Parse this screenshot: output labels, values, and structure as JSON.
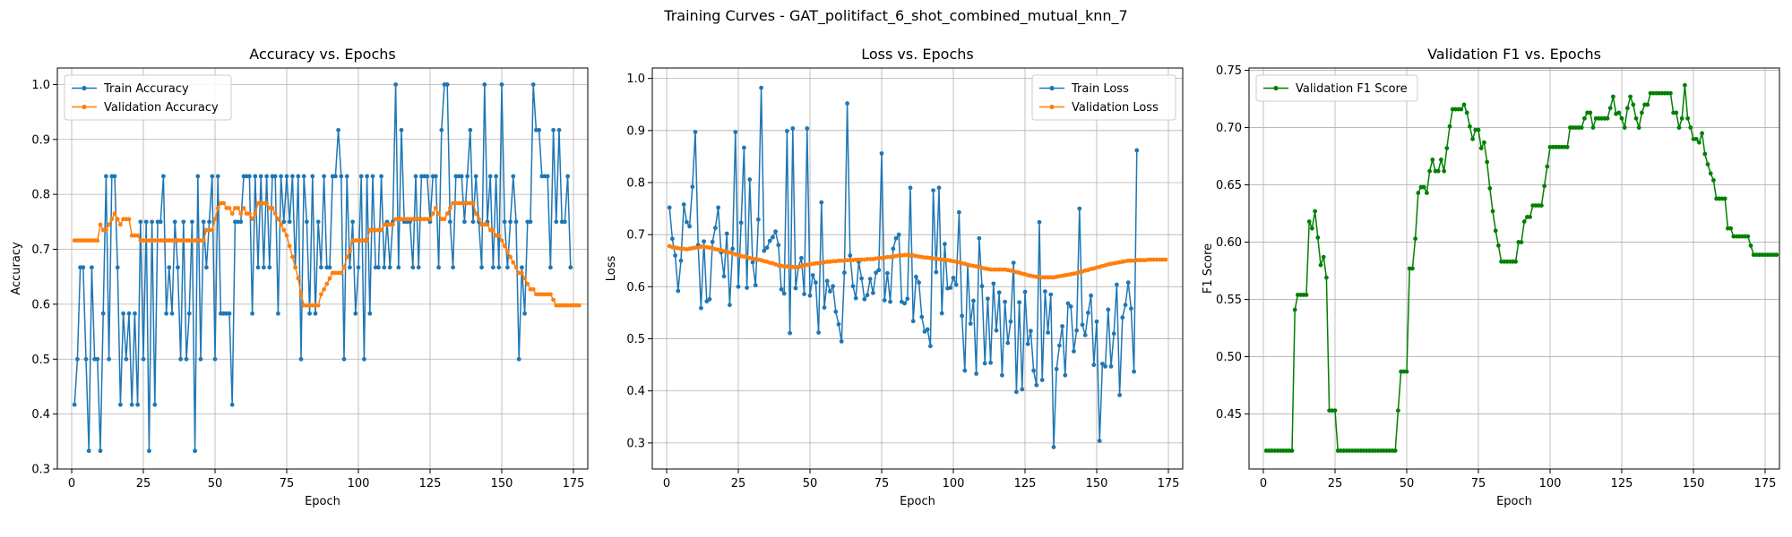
{
  "figure": {
    "suptitle": "Training Curves - GAT_politifact_6_shot_combined_mutual_knn_7"
  },
  "chart_data": [
    {
      "type": "line",
      "title": "Accuracy vs. Epochs",
      "xlabel": "Epoch",
      "ylabel": "Accuracy",
      "xlim": [
        -5,
        180
      ],
      "ylim": [
        0.3,
        1.03
      ],
      "xticks": [
        0,
        25,
        50,
        75,
        100,
        125,
        150,
        175
      ],
      "yticks": [
        0.3,
        0.4,
        0.5,
        0.6,
        0.7,
        0.8,
        0.9,
        1.0
      ],
      "ytick_labels": [
        "0.3",
        "0.4",
        "0.5",
        "0.6",
        "0.7",
        "0.8",
        "0.9",
        "1.0"
      ],
      "grid": true,
      "legend": "upper-left",
      "series": [
        {
          "name": "Train Accuracy",
          "color": "#1f77b4",
          "values": [
            0.417,
            0.5,
            0.667,
            0.667,
            0.5,
            0.333,
            0.667,
            0.5,
            0.5,
            0.333,
            0.583,
            0.833,
            0.5,
            0.833,
            0.833,
            0.667,
            0.417,
            0.583,
            0.5,
            0.583,
            0.417,
            0.583,
            0.417,
            0.75,
            0.5,
            0.75,
            0.333,
            0.75,
            0.417,
            0.75,
            0.75,
            0.833,
            0.583,
            0.667,
            0.583,
            0.75,
            0.667,
            0.5,
            0.75,
            0.5,
            0.583,
            0.75,
            0.333,
            0.833,
            0.5,
            0.75,
            0.667,
            0.75,
            0.833,
            0.5,
            0.833,
            0.583,
            0.583,
            0.583,
            0.583,
            0.417,
            0.75,
            0.75,
            0.75,
            0.833,
            0.833,
            0.833,
            0.583,
            0.833,
            0.667,
            0.833,
            0.667,
            0.833,
            0.667,
            0.833,
            0.833,
            0.583,
            0.833,
            0.75,
            0.833,
            0.75,
            0.833,
            0.667,
            0.833,
            0.5,
            0.833,
            0.75,
            0.583,
            0.833,
            0.583,
            0.75,
            0.667,
            0.833,
            0.667,
            0.667,
            0.833,
            0.833,
            0.917,
            0.833,
            0.5,
            0.833,
            0.667,
            0.75,
            0.583,
            0.667,
            0.833,
            0.5,
            0.833,
            0.583,
            0.833,
            0.667,
            0.667,
            0.833,
            0.667,
            0.75,
            0.667,
            0.75,
            1.0,
            0.667,
            0.917,
            0.75,
            0.75,
            0.75,
            0.667,
            0.833,
            0.667,
            0.833,
            0.833,
            0.833,
            0.75,
            0.833,
            0.833,
            0.667,
            0.917,
            1.0,
            1.0,
            0.75,
            0.667,
            0.833,
            0.833,
            0.833,
            0.75,
            0.833,
            0.917,
            0.75,
            0.833,
            0.75,
            0.667,
            1.0,
            0.75,
            0.833,
            0.667,
            0.833,
            0.667,
            1.0,
            0.75,
            0.667,
            0.75,
            0.833,
            0.75,
            0.5,
            0.667,
            0.583,
            0.75,
            0.75,
            1.0,
            0.917,
            0.917,
            0.833,
            0.833,
            0.833,
            0.667,
            0.917,
            0.75,
            0.917,
            0.75,
            0.75,
            0.833,
            0.667
          ]
        },
        {
          "name": "Validation Accuracy",
          "color": "#ff7f0e",
          "values": [
            0.716,
            0.716,
            0.716,
            0.716,
            0.716,
            0.716,
            0.716,
            0.716,
            0.716,
            0.745,
            0.735,
            0.735,
            0.745,
            0.755,
            0.765,
            0.755,
            0.745,
            0.755,
            0.755,
            0.755,
            0.725,
            0.725,
            0.725,
            0.716,
            0.716,
            0.716,
            0.716,
            0.716,
            0.716,
            0.716,
            0.716,
            0.716,
            0.716,
            0.716,
            0.716,
            0.716,
            0.716,
            0.716,
            0.716,
            0.716,
            0.716,
            0.716,
            0.716,
            0.716,
            0.716,
            0.716,
            0.735,
            0.735,
            0.735,
            0.755,
            0.775,
            0.784,
            0.784,
            0.775,
            0.775,
            0.765,
            0.775,
            0.775,
            0.765,
            0.775,
            0.765,
            0.765,
            0.755,
            0.765,
            0.784,
            0.784,
            0.784,
            0.784,
            0.775,
            0.775,
            0.765,
            0.755,
            0.745,
            0.735,
            0.725,
            0.706,
            0.686,
            0.667,
            0.647,
            0.618,
            0.598,
            0.598,
            0.598,
            0.598,
            0.598,
            0.598,
            0.618,
            0.627,
            0.637,
            0.647,
            0.657,
            0.657,
            0.657,
            0.657,
            0.667,
            0.686,
            0.696,
            0.716,
            0.716,
            0.716,
            0.716,
            0.716,
            0.716,
            0.735,
            0.735,
            0.735,
            0.735,
            0.735,
            0.745,
            0.745,
            0.745,
            0.745,
            0.755,
            0.755,
            0.755,
            0.755,
            0.755,
            0.755,
            0.755,
            0.755,
            0.755,
            0.755,
            0.755,
            0.755,
            0.755,
            0.765,
            0.775,
            0.765,
            0.755,
            0.755,
            0.765,
            0.775,
            0.784,
            0.784,
            0.784,
            0.784,
            0.784,
            0.784,
            0.784,
            0.784,
            0.765,
            0.755,
            0.745,
            0.745,
            0.745,
            0.735,
            0.735,
            0.725,
            0.725,
            0.716,
            0.706,
            0.696,
            0.686,
            0.676,
            0.667,
            0.657,
            0.657,
            0.647,
            0.637,
            0.627,
            0.627,
            0.618,
            0.618,
            0.618,
            0.618,
            0.618,
            0.618,
            0.608,
            0.598,
            0.598,
            0.598,
            0.598,
            0.598,
            0.598,
            0.598,
            0.598,
            0.598
          ]
        }
      ]
    },
    {
      "type": "line",
      "title": "Loss vs. Epochs",
      "xlabel": "Epoch",
      "ylabel": "Loss",
      "xlim": [
        -5,
        180
      ],
      "ylim": [
        0.25,
        1.02
      ],
      "xticks": [
        0,
        25,
        50,
        75,
        100,
        125,
        150,
        175
      ],
      "yticks": [
        0.3,
        0.4,
        0.5,
        0.6,
        0.7,
        0.8,
        0.9,
        1.0
      ],
      "ytick_labels": [
        "0.3",
        "0.4",
        "0.5",
        "0.6",
        "0.7",
        "0.8",
        "0.9",
        "1.0"
      ],
      "grid": true,
      "legend": "upper-right",
      "series": [
        {
          "name": "Train Loss",
          "color": "#1f77b4",
          "values": [
            0.752,
            0.692,
            0.66,
            0.592,
            0.65,
            0.758,
            0.724,
            0.716,
            0.792,
            0.897,
            0.68,
            0.559,
            0.687,
            0.572,
            0.576,
            0.686,
            0.713,
            0.752,
            0.666,
            0.62,
            0.702,
            0.565,
            0.673,
            0.897,
            0.6,
            0.723,
            0.867,
            0.598,
            0.806,
            0.647,
            0.603,
            0.729,
            0.982,
            0.669,
            0.675,
            0.688,
            0.695,
            0.706,
            0.68,
            0.595,
            0.587,
            0.899,
            0.511,
            0.904,
            0.597,
            0.638,
            0.655,
            0.586,
            0.904,
            0.583,
            0.622,
            0.608,
            0.512,
            0.762,
            0.56,
            0.611,
            0.591,
            0.601,
            0.552,
            0.528,
            0.495,
            0.627,
            0.952,
            0.66,
            0.601,
            0.578,
            0.648,
            0.616,
            0.576,
            0.584,
            0.615,
            0.588,
            0.627,
            0.632,
            0.856,
            0.574,
            0.626,
            0.571,
            0.673,
            0.693,
            0.7,
            0.571,
            0.568,
            0.577,
            0.79,
            0.534,
            0.619,
            0.608,
            0.542,
            0.514,
            0.518,
            0.486,
            0.785,
            0.628,
            0.79,
            0.549,
            0.682,
            0.597,
            0.598,
            0.617,
            0.604,
            0.743,
            0.544,
            0.439,
            0.642,
            0.529,
            0.573,
            0.433,
            0.693,
            0.601,
            0.453,
            0.577,
            0.454,
            0.606,
            0.516,
            0.589,
            0.43,
            0.571,
            0.492,
            0.533,
            0.646,
            0.398,
            0.57,
            0.403,
            0.59,
            0.49,
            0.515,
            0.439,
            0.411,
            0.724,
            0.421,
            0.591,
            0.512,
            0.585,
            0.292,
            0.442,
            0.487,
            0.524,
            0.43,
            0.568,
            0.562,
            0.476,
            0.516,
            0.75,
            0.527,
            0.507,
            0.55,
            0.583,
            0.45,
            0.533,
            0.304,
            0.452,
            0.447,
            0.556,
            0.447,
            0.51,
            0.604,
            0.392,
            0.541,
            0.565,
            0.608,
            0.558,
            0.437,
            0.862
          ]
        },
        {
          "name": "Validation Loss",
          "color": "#ff7f0e",
          "values": [
            0.678,
            0.676,
            0.675,
            0.674,
            0.673,
            0.673,
            0.672,
            0.673,
            0.674,
            0.675,
            0.675,
            0.677,
            0.677,
            0.676,
            0.675,
            0.674,
            0.672,
            0.671,
            0.67,
            0.668,
            0.667,
            0.666,
            0.664,
            0.662,
            0.661,
            0.659,
            0.658,
            0.657,
            0.655,
            0.654,
            0.653,
            0.652,
            0.651,
            0.649,
            0.648,
            0.646,
            0.645,
            0.643,
            0.641,
            0.64,
            0.639,
            0.639,
            0.638,
            0.638,
            0.637,
            0.638,
            0.639,
            0.641,
            0.642,
            0.643,
            0.644,
            0.645,
            0.645,
            0.646,
            0.647,
            0.648,
            0.648,
            0.649,
            0.649,
            0.65,
            0.65,
            0.65,
            0.651,
            0.651,
            0.651,
            0.652,
            0.652,
            0.652,
            0.652,
            0.653,
            0.653,
            0.653,
            0.654,
            0.655,
            0.655,
            0.656,
            0.657,
            0.657,
            0.658,
            0.659,
            0.66,
            0.66,
            0.661,
            0.661,
            0.66,
            0.66,
            0.659,
            0.658,
            0.657,
            0.656,
            0.656,
            0.655,
            0.654,
            0.654,
            0.653,
            0.652,
            0.652,
            0.651,
            0.65,
            0.649,
            0.648,
            0.647,
            0.645,
            0.644,
            0.642,
            0.641,
            0.64,
            0.639,
            0.638,
            0.636,
            0.635,
            0.634,
            0.633,
            0.633,
            0.633,
            0.633,
            0.633,
            0.633,
            0.632,
            0.631,
            0.63,
            0.628,
            0.627,
            0.625,
            0.624,
            0.622,
            0.621,
            0.62,
            0.619,
            0.619,
            0.618,
            0.618,
            0.618,
            0.618,
            0.618,
            0.619,
            0.62,
            0.621,
            0.622,
            0.623,
            0.624,
            0.625,
            0.626,
            0.628,
            0.629,
            0.631,
            0.632,
            0.634,
            0.635,
            0.637,
            0.638,
            0.64,
            0.641,
            0.643,
            0.644,
            0.645,
            0.646,
            0.647,
            0.648,
            0.649,
            0.65,
            0.65,
            0.65,
            0.651,
            0.651,
            0.651,
            0.651,
            0.652,
            0.652,
            0.652,
            0.652,
            0.652,
            0.652,
            0.652
          ]
        }
      ]
    },
    {
      "type": "line",
      "title": "Validation F1 vs. Epochs",
      "xlabel": "Epoch",
      "ylabel": "F1 Score",
      "xlim": [
        -5,
        180
      ],
      "ylim": [
        0.402,
        0.752
      ],
      "xticks": [
        0,
        25,
        50,
        75,
        100,
        125,
        150,
        175
      ],
      "yticks": [
        0.45,
        0.5,
        0.55,
        0.6,
        0.65,
        0.7,
        0.75
      ],
      "ytick_labels": [
        "0.45",
        "0.50",
        "0.55",
        "0.60",
        "0.65",
        "0.70",
        "0.75"
      ],
      "grid": true,
      "legend": "upper-left",
      "series": [
        {
          "name": "Validation F1 Score",
          "color": "#008000",
          "values": [
            0.418,
            0.418,
            0.418,
            0.418,
            0.418,
            0.418,
            0.418,
            0.418,
            0.418,
            0.418,
            0.541,
            0.554,
            0.554,
            0.554,
            0.554,
            0.618,
            0.612,
            0.627,
            0.604,
            0.58,
            0.587,
            0.569,
            0.453,
            0.453,
            0.453,
            0.418,
            0.418,
            0.418,
            0.418,
            0.418,
            0.418,
            0.418,
            0.418,
            0.418,
            0.418,
            0.418,
            0.418,
            0.418,
            0.418,
            0.418,
            0.418,
            0.418,
            0.418,
            0.418,
            0.418,
            0.418,
            0.453,
            0.487,
            0.487,
            0.487,
            0.577,
            0.577,
            0.603,
            0.643,
            0.648,
            0.648,
            0.643,
            0.662,
            0.672,
            0.662,
            0.662,
            0.672,
            0.662,
            0.682,
            0.701,
            0.716,
            0.716,
            0.716,
            0.716,
            0.72,
            0.713,
            0.701,
            0.69,
            0.698,
            0.698,
            0.682,
            0.687,
            0.67,
            0.647,
            0.627,
            0.61,
            0.597,
            0.583,
            0.583,
            0.583,
            0.583,
            0.583,
            0.583,
            0.6,
            0.6,
            0.618,
            0.622,
            0.622,
            0.632,
            0.632,
            0.632,
            0.632,
            0.649,
            0.666,
            0.683,
            0.683,
            0.683,
            0.683,
            0.683,
            0.683,
            0.683,
            0.7,
            0.7,
            0.7,
            0.7,
            0.7,
            0.708,
            0.713,
            0.713,
            0.7,
            0.708,
            0.708,
            0.708,
            0.708,
            0.708,
            0.717,
            0.727,
            0.712,
            0.713,
            0.708,
            0.7,
            0.717,
            0.727,
            0.72,
            0.708,
            0.7,
            0.713,
            0.72,
            0.72,
            0.73,
            0.73,
            0.73,
            0.73,
            0.73,
            0.73,
            0.73,
            0.73,
            0.713,
            0.713,
            0.7,
            0.708,
            0.737,
            0.708,
            0.7,
            0.69,
            0.69,
            0.687,
            0.695,
            0.677,
            0.668,
            0.66,
            0.654,
            0.638,
            0.638,
            0.638,
            0.638,
            0.612,
            0.612,
            0.605,
            0.605,
            0.605,
            0.605,
            0.605,
            0.605,
            0.597,
            0.589,
            0.589,
            0.589,
            0.589,
            0.589,
            0.589,
            0.589,
            0.589,
            0.589
          ]
        }
      ]
    }
  ]
}
